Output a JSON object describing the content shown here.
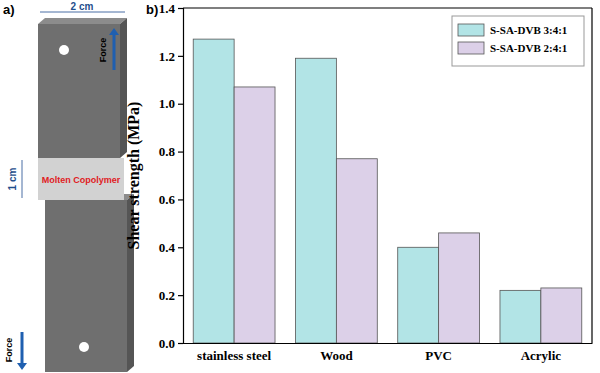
{
  "chart_data": {
    "type": "bar",
    "annotations": [
      "b)"
    ],
    "y_label": "Shear strength (MPa)",
    "categories": [
      "stainless steel",
      "Wood",
      "PVC",
      "Acrylic"
    ],
    "series": [
      {
        "name": "S-SA-DVB 3:4:1",
        "color": "#b2e4e6",
        "values": [
          1.27,
          1.19,
          0.4,
          0.22
        ]
      },
      {
        "name": "S-SA-DVB 2:4:1",
        "color": "#dcd0e8",
        "values": [
          1.07,
          0.77,
          0.46,
          0.23
        ]
      }
    ],
    "ylim": [
      0,
      1.4
    ],
    "yticks": [
      {
        "value": 0,
        "label": "0.0"
      },
      0.2,
      0.4,
      0.6,
      0.8,
      {
        "value": 1,
        "label": "1.0"
      },
      1.2,
      1.4
    ],
    "legend": "upper right",
    "grid": false
  },
  "diagram": {
    "label": "a)",
    "width_label": "2 cm",
    "overlap_label": "1 cm",
    "adhesive_label": "Molten Copolymer",
    "force_labels": [
      "Force",
      "Force"
    ]
  }
}
